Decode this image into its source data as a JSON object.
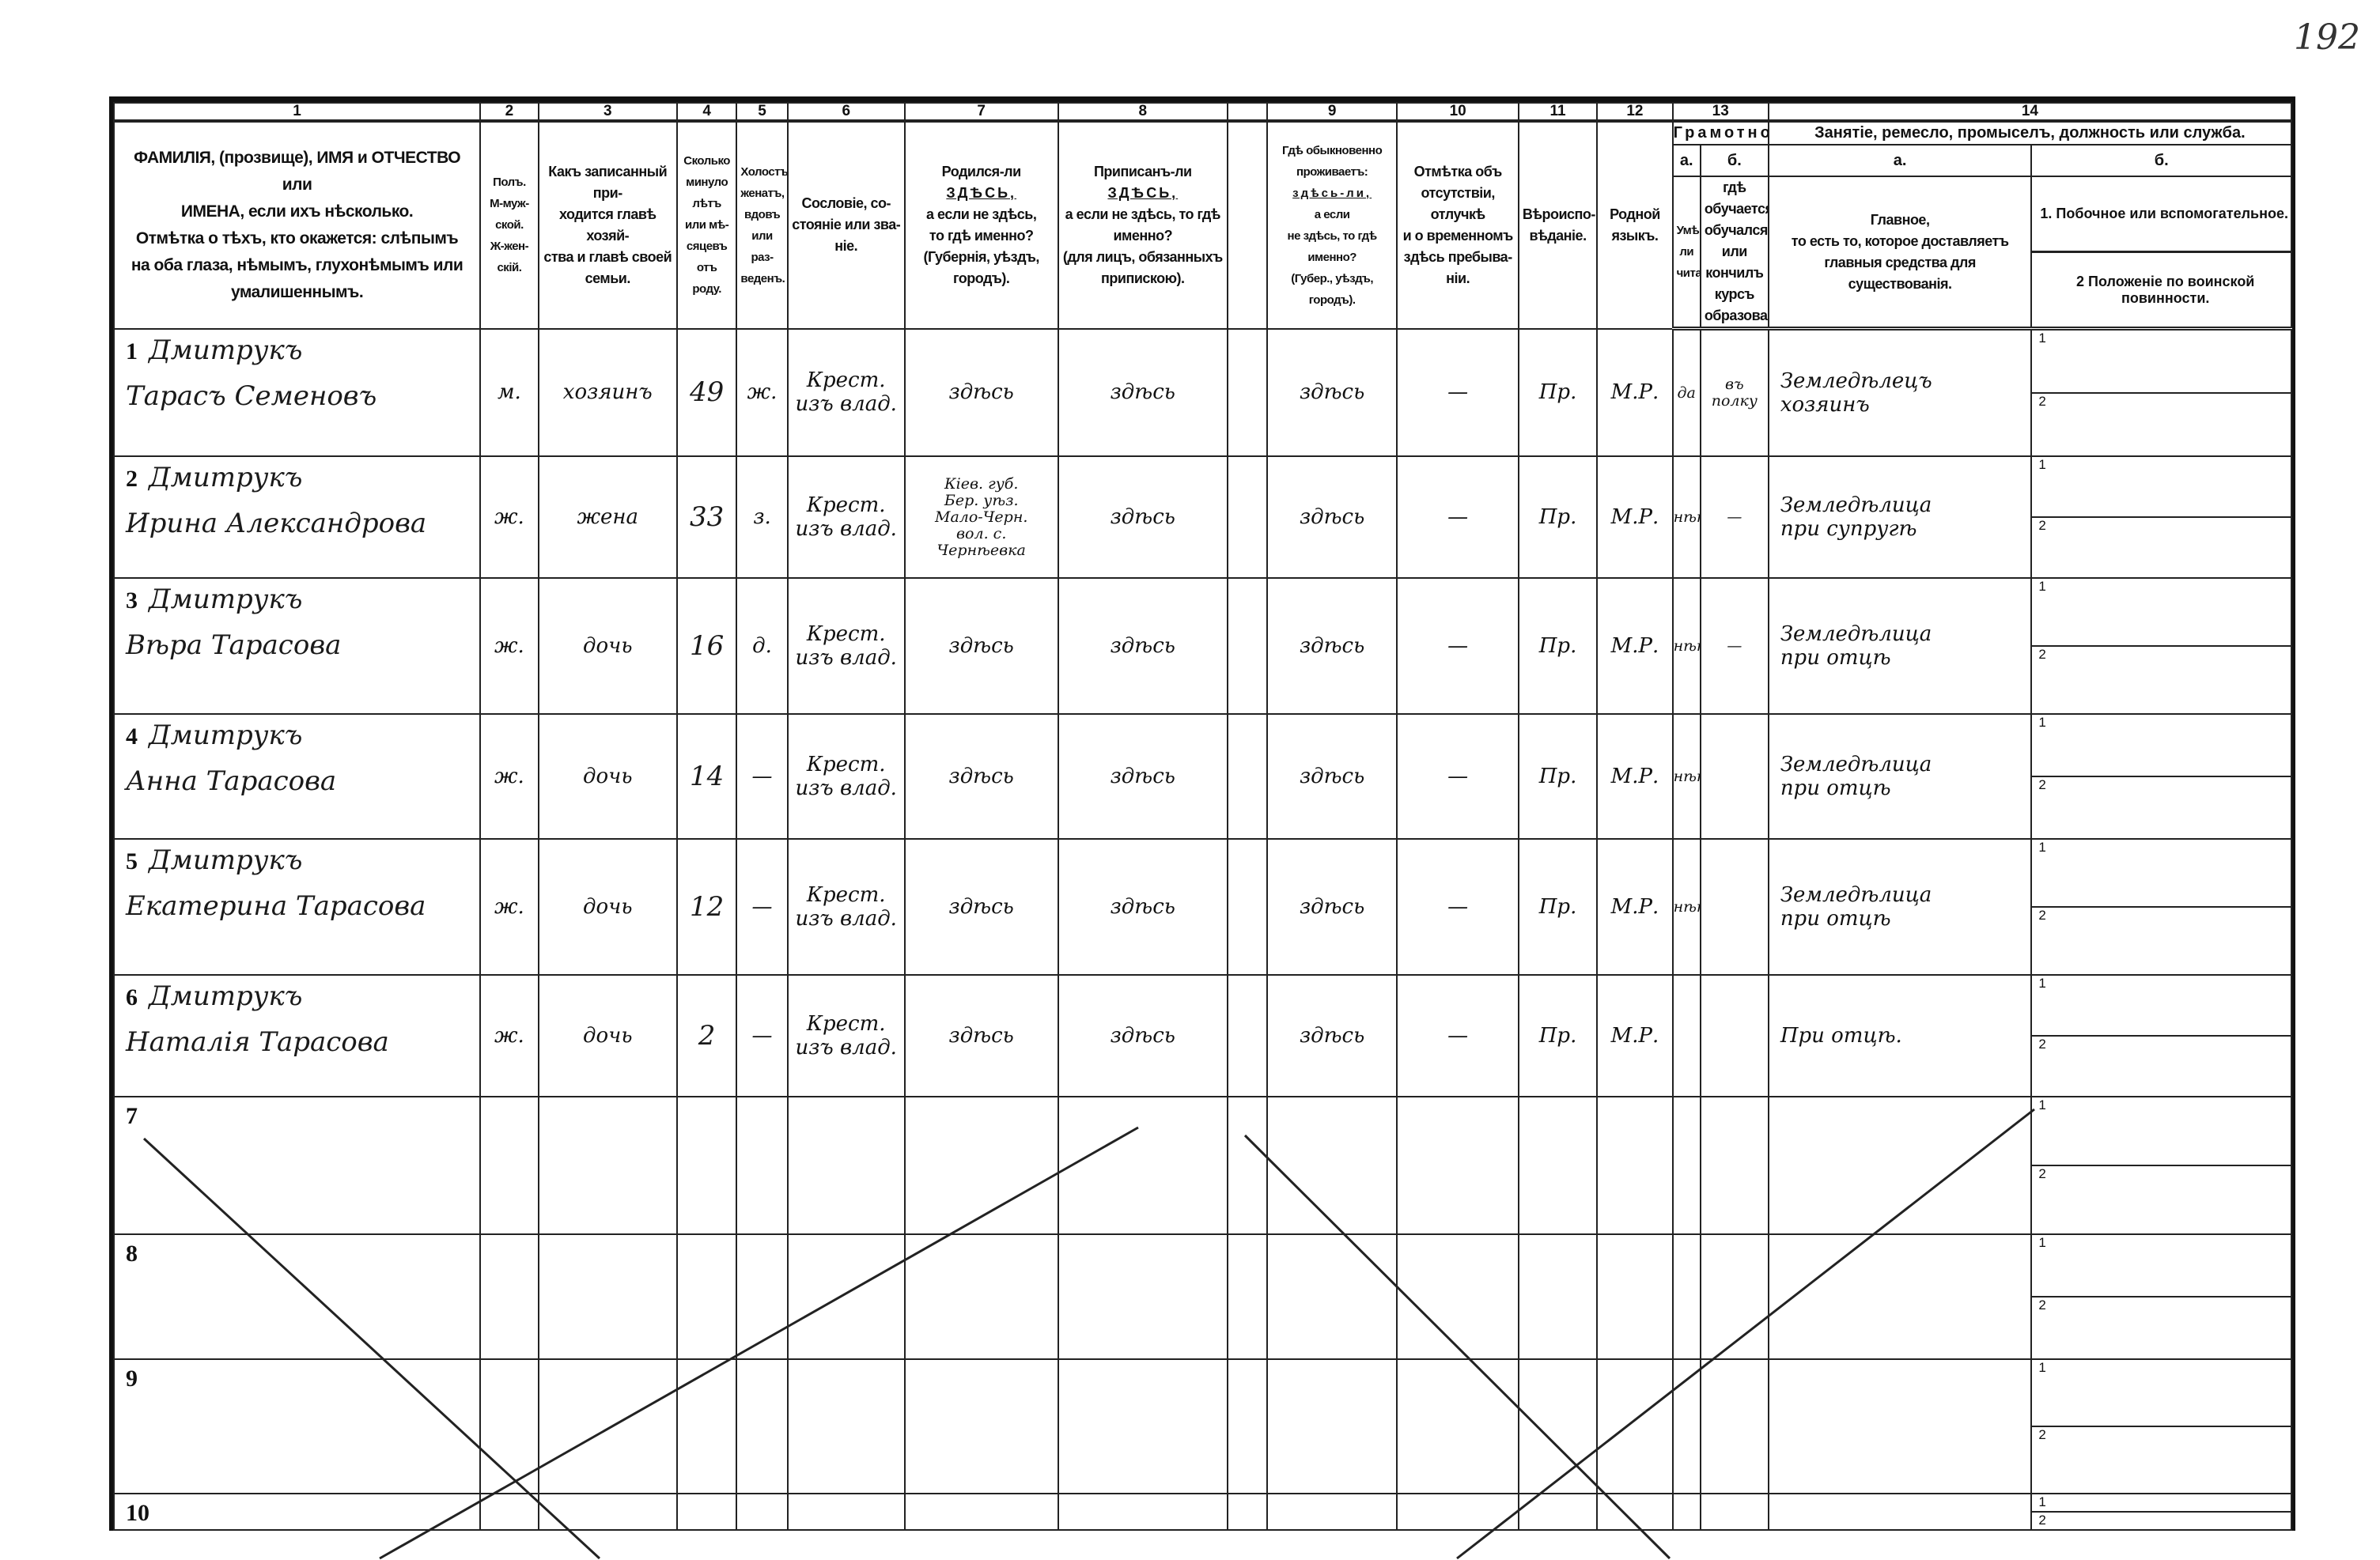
{
  "page_number": "192",
  "column_numbers": [
    "1",
    "2",
    "3",
    "4",
    "5",
    "6",
    "7",
    "8",
    "",
    "9",
    "10",
    "11",
    "12",
    "13",
    "14"
  ],
  "headers": {
    "c1": [
      "ФАМИЛІЯ, (прозвище), ИМЯ и ОТЧЕСТВО или",
      "ИМЕНА, если ихъ нѣсколько.",
      "Отмѣтка о тѣхъ, кто окажется: слѣпымъ",
      "на оба глаза, нѣмымъ, глухонѣмымъ или",
      "умалишеннымъ."
    ],
    "c2": [
      "Полъ.",
      "М-муж-",
      "ской.",
      "Ж-жен-",
      "скій."
    ],
    "c3": [
      "Какъ записанный при-",
      "ходится главѣ хозяй-",
      "ства и главѣ своей",
      "семьи."
    ],
    "c4": [
      "Сколько",
      "минуло",
      "лѣтъ",
      "или мѣ-",
      "сяцевъ",
      "отъ роду."
    ],
    "c5": [
      "Холостъ,",
      "женатъ,",
      "вдовъ",
      "или раз-",
      "веденъ."
    ],
    "c6": [
      "Сословіе, со-",
      "стояніе или зва-",
      "ніе."
    ],
    "c7": [
      "Родился-ли",
      "ЗДѢСЬ,",
      "а если не здѣсь,",
      "то гдѣ именно?",
      "(Губернія, уѣздъ, городъ)."
    ],
    "c8": [
      "Приписанъ-ли",
      "ЗДѢСЬ,",
      "а если не здѣсь, то гдѣ",
      "именно?",
      "(для лицъ, обязанныхъ",
      "припискою)."
    ],
    "c9": [
      "Гдѣ обыкновенно",
      "проживаетъ:",
      "здѣсь-ли,",
      "а если",
      "не здѣсь, то гдѣ",
      "именно?",
      "(Губер., уѣздъ, городъ)."
    ],
    "c10": [
      "Отмѣтка объ",
      "отсутствіи, отлучкѣ",
      "и о временномъ",
      "здѣсь пребыва-",
      "ніи."
    ],
    "c11": [
      "Вѣроиспо-",
      "вѣданіе."
    ],
    "c12": [
      "Родной",
      "языкъ."
    ],
    "c13": {
      "title": "Грамотность.",
      "a": "а.",
      "b": "б.",
      "a_text": [
        "Умѣеть-",
        "ли",
        "читать?"
      ],
      "b_text": [
        "гдѣ обучается,",
        "обучался или",
        "кончилъ курсъ",
        "образованія?"
      ]
    },
    "c14": {
      "title": "Занятіе, ремесло, промыселъ, должность или служба.",
      "a": "а.",
      "b": "б.",
      "a_text": [
        "Главное,",
        "то есть то, которое доставляетъ",
        "главныя средства для существованія."
      ],
      "b_text_1": "1.  Побочное или вспомогательное.",
      "b_text_2": "2  Положеніе по воинской повинности."
    }
  },
  "subrow_labels": [
    "1",
    "2"
  ],
  "rows": [
    {
      "no": "1",
      "surname": "Дмитрукъ",
      "given": "Тарасъ Семеновъ",
      "sex": "м.",
      "relation": "хозяинъ",
      "age": "49",
      "marital": "ж.",
      "estate": [
        "Крест.",
        "изъ влад."
      ],
      "born": [
        "здѣсь"
      ],
      "registered": "здѣсь",
      "resides": "здѣсь",
      "absence": "—",
      "religion": "Пр.",
      "language": "М.Р.",
      "literate": "да",
      "education": "въ полку",
      "occupation": [
        "Земледѣлецъ",
        "хозяинъ"
      ]
    },
    {
      "no": "2",
      "surname": "Дмитрукъ",
      "given": "Ирина Александрова",
      "sex": "ж.",
      "relation": "жена",
      "age": "33",
      "marital": "з.",
      "estate": [
        "Крест.",
        "изъ влад."
      ],
      "born": [
        "Кіев. губ.",
        "Бер. уѣз.",
        "Мало-Черн.",
        "вол. с.",
        "Чернѣевка"
      ],
      "registered": "здѣсь",
      "resides": "здѣсь",
      "absence": "—",
      "religion": "Пр.",
      "language": "М.Р.",
      "literate": "нѣтъ",
      "education": "—",
      "occupation": [
        "Земледѣлица",
        "при супругѣ"
      ]
    },
    {
      "no": "3",
      "surname": "Дмитрукъ",
      "given": "Вѣра Тарасова",
      "sex": "ж.",
      "relation": "дочь",
      "age": "16",
      "marital": "д.",
      "estate": [
        "Крест.",
        "изъ влад."
      ],
      "born": [
        "здѣсь"
      ],
      "registered": "здѣсь",
      "resides": "здѣсь",
      "absence": "—",
      "religion": "Пр.",
      "language": "М.Р.",
      "literate": "нѣтъ",
      "education": "—",
      "occupation": [
        "Земледѣлица",
        "при отцѣ"
      ]
    },
    {
      "no": "4",
      "surname": "Дмитрукъ",
      "given": "Анна Тарасова",
      "sex": "ж.",
      "relation": "дочь",
      "age": "14",
      "marital": "—",
      "estate": [
        "Крест.",
        "изъ влад."
      ],
      "born": [
        "здѣсь"
      ],
      "registered": "здѣсь",
      "resides": "здѣсь",
      "absence": "—",
      "religion": "Пр.",
      "language": "М.Р.",
      "literate": "нѣтъ",
      "education": "",
      "occupation": [
        "Земледѣлица",
        "при отцѣ"
      ]
    },
    {
      "no": "5",
      "surname": "Дмитрукъ",
      "given": "Екатерина Тарасова",
      "sex": "ж.",
      "relation": "дочь",
      "age": "12",
      "marital": "—",
      "estate": [
        "Крест.",
        "изъ влад."
      ],
      "born": [
        "здѣсь"
      ],
      "registered": "здѣсь",
      "resides": "здѣсь",
      "absence": "—",
      "religion": "Пр.",
      "language": "М.Р.",
      "literate": "нѣтъ",
      "education": "",
      "occupation": [
        "Земледѣлица",
        "при отцѣ"
      ]
    },
    {
      "no": "6",
      "surname": "Дмитрукъ",
      "given": "Наталія Тарасова",
      "sex": "ж.",
      "relation": "дочь",
      "age": "2",
      "marital": "—",
      "estate": [
        "Крест.",
        "изъ влад."
      ],
      "born": [
        "здѣсь"
      ],
      "registered": "здѣсь",
      "resides": "здѣсь",
      "absence": "—",
      "religion": "Пр.",
      "language": "М.Р.",
      "literate": "",
      "education": "",
      "occupation": [
        "При отцѣ."
      ]
    },
    {
      "no": "7"
    },
    {
      "no": "8"
    },
    {
      "no": "9"
    },
    {
      "no": "10"
    }
  ],
  "ink_color": "#1a1a1a"
}
